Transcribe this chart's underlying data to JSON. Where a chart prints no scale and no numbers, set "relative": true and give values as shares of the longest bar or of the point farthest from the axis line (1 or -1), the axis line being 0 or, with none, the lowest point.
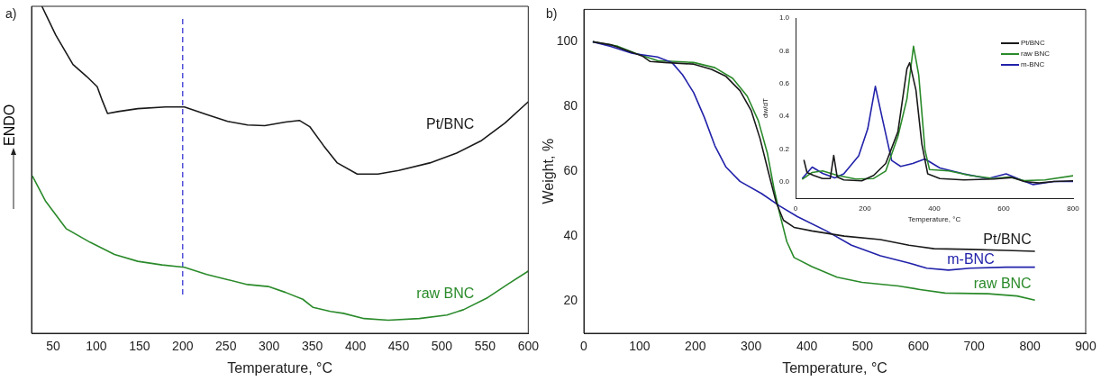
{
  "chart_data": [
    {
      "type": "line",
      "relative": true,
      "xlabel": "Temperature, °C",
      "ylabel": "ENDO",
      "annotations": [
        "a)"
      ],
      "xlim": [
        25,
        600
      ],
      "xticks": [
        50,
        100,
        150,
        200,
        250,
        300,
        350,
        400,
        450,
        500,
        550,
        600
      ],
      "ref_lines": [
        {
          "axis": "x",
          "value": 200,
          "color": "#2b2bd0",
          "line_style": "dashed"
        }
      ],
      "series": [
        {
          "name": "Pt/BNC",
          "color": "#1a1a1a",
          "x": [
            37,
            53,
            73,
            89,
            101,
            107,
            113,
            125,
            148,
            180,
            202,
            228,
            252,
            275,
            295,
            319,
            335,
            347,
            363,
            379,
            402,
            426,
            450,
            486,
            517,
            545,
            573,
            600
          ],
          "values": [
            1.0,
            0.912,
            0.822,
            0.785,
            0.754,
            0.711,
            0.672,
            0.678,
            0.687,
            0.692,
            0.692,
            0.669,
            0.648,
            0.637,
            0.635,
            0.646,
            0.651,
            0.632,
            0.574,
            0.521,
            0.487,
            0.487,
            0.498,
            0.521,
            0.551,
            0.588,
            0.643,
            0.708
          ]
        },
        {
          "name": "raw BNC",
          "color": "#2a8a2a",
          "x": [
            26,
            41,
            65,
            93,
            121,
            148,
            176,
            202,
            228,
            252,
            275,
            299,
            319,
            339,
            351,
            371,
            386,
            410,
            438,
            474,
            506,
            525,
            553,
            577,
            600
          ],
          "values": [
            0.481,
            0.405,
            0.32,
            0.278,
            0.241,
            0.22,
            0.209,
            0.202,
            0.18,
            0.164,
            0.149,
            0.143,
            0.125,
            0.104,
            0.079,
            0.067,
            0.061,
            0.045,
            0.04,
            0.045,
            0.056,
            0.072,
            0.109,
            0.151,
            0.19
          ]
        }
      ]
    },
    {
      "type": "line",
      "xlabel": "Temperature, °C",
      "ylabel": "Weight, %",
      "annotations": [
        "b)"
      ],
      "xlim": [
        0,
        900
      ],
      "xticks": [
        0,
        100,
        200,
        300,
        400,
        500,
        600,
        700,
        800,
        900
      ],
      "ylim": [
        10,
        110
      ],
      "yticks": [
        20,
        40,
        60,
        80,
        100
      ],
      "series": [
        {
          "name": "Pt/BNC",
          "color": "#1a1a1a",
          "x": [
            16,
            48,
            87,
            106,
            119,
            145,
            197,
            229,
            255,
            280,
            300,
            316,
            332,
            345,
            358,
            377,
            409,
            467,
            532,
            583,
            628,
            693,
            757,
            809
          ],
          "values": [
            100,
            99.1,
            96.7,
            95.5,
            93.9,
            93.6,
            93.1,
            91.5,
            89.3,
            84.9,
            78.8,
            70.1,
            59.1,
            50.4,
            44.9,
            42.7,
            41.6,
            40,
            38.9,
            37.2,
            36.1,
            35.9,
            35.6,
            35.3
          ]
        },
        {
          "name": "m-BNC",
          "color": "#2222aa",
          "x": [
            16,
            48,
            87,
            132,
            158,
            177,
            197,
            216,
            235,
            255,
            280,
            319,
            351,
            383,
            435,
            480,
            532,
            583,
            615,
            654,
            693,
            757,
            809
          ],
          "values": [
            100,
            98.6,
            96.4,
            95.3,
            93.6,
            89.8,
            84.3,
            76.7,
            67.9,
            61.3,
            56.9,
            53.1,
            49.3,
            46,
            41.6,
            37.2,
            33.9,
            31.7,
            30.1,
            29.5,
            30.1,
            30.4,
            30.4
          ]
        },
        {
          "name": "raw BNC",
          "color": "#2a8a2a",
          "x": [
            16,
            61,
            93,
            132,
            197,
            235,
            267,
            293,
            313,
            329,
            341,
            351,
            364,
            377,
            409,
            454,
            499,
            564,
            603,
            648,
            725,
            777,
            809
          ],
          "values": [
            100,
            98.6,
            96.4,
            94.2,
            93.6,
            92,
            88.7,
            83.2,
            75.6,
            65.7,
            54.7,
            47.1,
            38.3,
            33.4,
            30.6,
            27.3,
            25.7,
            24.6,
            23.5,
            22.4,
            22.2,
            21.5,
            20.2
          ]
        }
      ]
    },
    {
      "type": "line",
      "xlabel": "Temperature, °C",
      "ylabel": "dw/dT",
      "legend": "top right",
      "xlim": [
        0,
        800
      ],
      "xticks": [
        0,
        200,
        400,
        600,
        800
      ],
      "ylim": [
        -0.1,
        1.0
      ],
      "yticks": [
        {
          "value": 0,
          "label": "0.0"
        },
        0.2,
        0.4,
        0.6,
        0.8,
        {
          "value": 1,
          "label": "1.0"
        }
      ],
      "series": [
        {
          "name": "Pt/BNC",
          "color": "#1a1a1a",
          "x": [
            24,
            33,
            52,
            78,
            100,
            110,
            120,
            139,
            191,
            225,
            260,
            295,
            321,
            329,
            347,
            364,
            381,
            416,
            485,
            572,
            624,
            659,
            702,
            745,
            800
          ],
          "values": [
            0.134,
            0.057,
            0.039,
            0.02,
            0.02,
            0.161,
            0.029,
            0.011,
            0.006,
            0.039,
            0.112,
            0.305,
            0.69,
            0.727,
            0.561,
            0.231,
            0.048,
            0.02,
            0.011,
            0.017,
            0.026,
            0.002,
            -0.007,
            0.002,
            0.006
          ]
        },
        {
          "name": "raw BNC",
          "color": "#2a8a2a",
          "x": [
            19,
            48,
            78,
            121,
            173,
            225,
            260,
            295,
            321,
            340,
            355,
            373,
            386,
            442,
            503,
            572,
            615,
            659,
            719,
            800
          ],
          "values": [
            0.015,
            0.057,
            0.066,
            0.039,
            0.017,
            0.02,
            0.066,
            0.277,
            0.506,
            0.828,
            0.653,
            0.195,
            0.075,
            0.066,
            0.039,
            0.02,
            0.029,
            0.007,
            0.011,
            0.037
          ]
        },
        {
          "name": "m-BNC",
          "color": "#2222aa",
          "x": [
            19,
            48,
            78,
            113,
            139,
            182,
            208,
            230,
            251,
            277,
            303,
            338,
            373,
            416,
            485,
            555,
            607,
            650,
            685,
            745,
            800
          ],
          "values": [
            0.02,
            0.09,
            0.051,
            0.024,
            0.048,
            0.158,
            0.323,
            0.583,
            0.378,
            0.13,
            0.094,
            0.112,
            0.139,
            0.084,
            0.048,
            0.02,
            0.048,
            0.011,
            -0.017,
            0.002,
            0.002
          ]
        }
      ]
    }
  ]
}
